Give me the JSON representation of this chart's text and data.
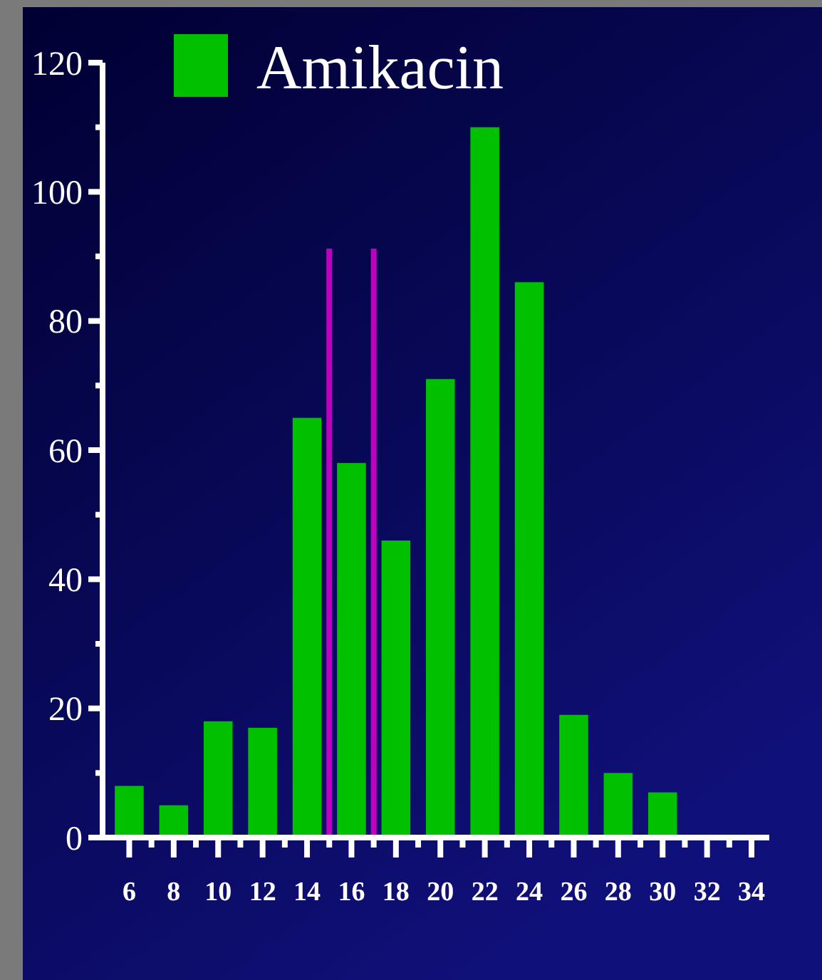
{
  "chart_data": {
    "type": "bar",
    "x": [
      6,
      8,
      10,
      12,
      14,
      16,
      18,
      20,
      22,
      24,
      26,
      28,
      30,
      32,
      34
    ],
    "series": [
      {
        "name": "Amikacin",
        "color": "#00c000",
        "values": [
          8,
          5,
          18,
          17,
          65,
          58,
          46,
          71,
          110,
          86,
          19,
          10,
          7,
          0,
          0
        ]
      }
    ],
    "xlim": [
      4.8,
      34.8
    ],
    "xticks": [
      6,
      {
        "value": 7,
        "label": null
      },
      8,
      {
        "value": 9,
        "label": null
      },
      10,
      {
        "value": 11,
        "label": null
      },
      12,
      {
        "value": 13,
        "label": null
      },
      14,
      {
        "value": 15,
        "label": null
      },
      16,
      {
        "value": 17,
        "label": null
      },
      18,
      {
        "value": 19,
        "label": null
      },
      20,
      {
        "value": 21,
        "label": null
      },
      22,
      {
        "value": 23,
        "label": null
      },
      24,
      {
        "value": 25,
        "label": null
      },
      26,
      {
        "value": 27,
        "label": null
      },
      28,
      {
        "value": 29,
        "label": null
      },
      30,
      {
        "value": 31,
        "label": null
      },
      32,
      {
        "value": 33,
        "label": null
      },
      34
    ],
    "ylim": [
      0,
      120
    ],
    "yticks": [
      0,
      {
        "value": 10,
        "label": null
      },
      20,
      {
        "value": 30,
        "label": null
      },
      40,
      {
        "value": 50,
        "label": null
      },
      60,
      {
        "value": 70,
        "label": null
      },
      80,
      {
        "value": 90,
        "label": null
      },
      100,
      {
        "value": 110,
        "label": null
      },
      120
    ],
    "ref_lines": [
      {
        "axis": "x",
        "value": 15,
        "color": "#c000c0"
      },
      {
        "axis": "x",
        "value": 17,
        "color": "#c000c0"
      }
    ],
    "legend": "top left"
  }
}
